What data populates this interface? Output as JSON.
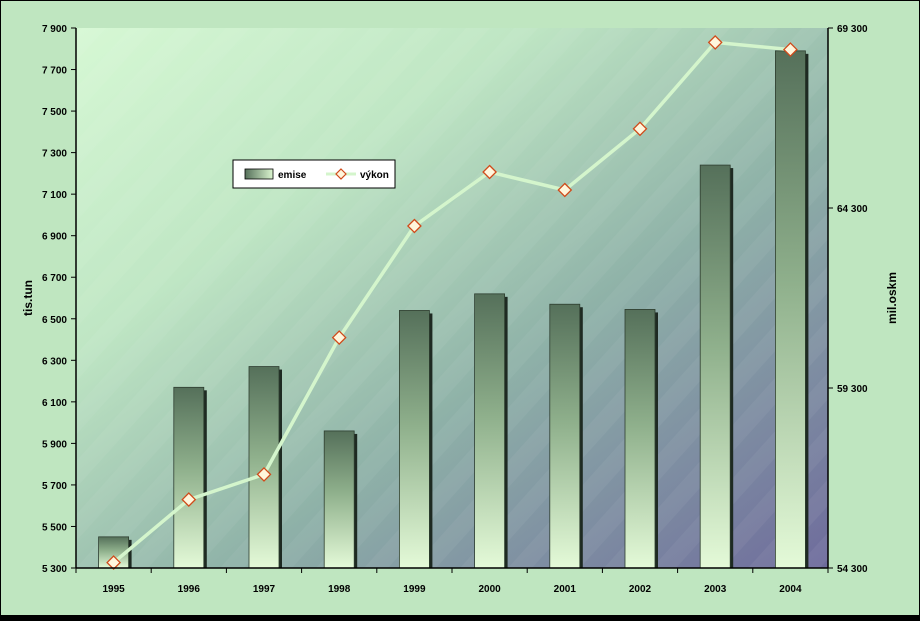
{
  "chart_data": {
    "type": "bar",
    "categories": [
      "1995",
      "1996",
      "1997",
      "1998",
      "1999",
      "2000",
      "2001",
      "2002",
      "2003",
      "2004"
    ],
    "series": [
      {
        "name": "emise",
        "type": "bar",
        "axis": "left",
        "values": [
          5450,
          6170,
          6270,
          5960,
          6540,
          6620,
          6570,
          6545,
          7240,
          7790
        ]
      },
      {
        "name": "výkon",
        "type": "line",
        "axis": "right",
        "values": [
          54450,
          56200,
          56900,
          60700,
          63800,
          65300,
          64800,
          66500,
          68900,
          68700
        ]
      }
    ],
    "title": "",
    "xlabel": "",
    "ylabel": "tis.tun",
    "y2label": "mil.oskm",
    "ylim": [
      5300,
      7900
    ],
    "y2lim": [
      54300,
      69300
    ],
    "yticks": [
      "5 300",
      "5 500",
      "5 700",
      "5 900",
      "6 100",
      "6 300",
      "6 500",
      "6 700",
      "6 900",
      "7 100",
      "7 300",
      "7 500",
      "7 700",
      "7 900"
    ],
    "y2ticks": [
      "54 300",
      "59 300",
      "64 300",
      "69 300"
    ],
    "legend": "inside-top-left",
    "grid": false,
    "colors": {
      "bar_dark": "#55705a",
      "bar_light": "#dcf6d0",
      "line": "#d4f5cc",
      "marker_fill": "#fff6dc",
      "marker_stroke": "#d04a1a"
    }
  }
}
